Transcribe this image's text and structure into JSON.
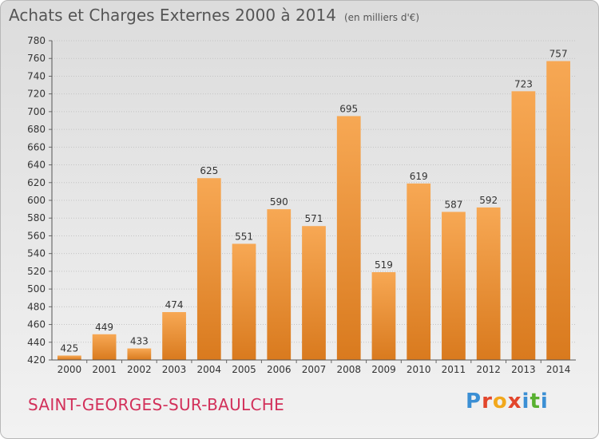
{
  "title": "Achats et Charges Externes 2000 à 2014",
  "subtitle": "(en milliers d'€)",
  "commune": "SAINT-GEORGES-SUR-BAULCHE",
  "logo": {
    "text": "Proxiti",
    "letters": [
      {
        "ch": "P",
        "color": "#3b8fd4"
      },
      {
        "ch": "r",
        "color": "#e2462c"
      },
      {
        "ch": "o",
        "color": "#f2a81c"
      },
      {
        "ch": "x",
        "color": "#e2462c"
      },
      {
        "ch": "i",
        "color": "#3b8fd4"
      },
      {
        "ch": "t",
        "color": "#58b030"
      },
      {
        "ch": "i",
        "color": "#3b8fd4"
      }
    ]
  },
  "colors": {
    "bar_light": "#f7a854",
    "bar_dark": "#d97a1e",
    "title": "#555555",
    "commune": "#d2305a"
  },
  "chart_data": {
    "type": "bar",
    "title": "Achats et Charges Externes 2000 à 2014",
    "subtitle": "(en milliers d'€)",
    "categories": [
      "2000",
      "2001",
      "2002",
      "2003",
      "2004",
      "2005",
      "2006",
      "2007",
      "2008",
      "2009",
      "2010",
      "2011",
      "2012",
      "2013",
      "2014"
    ],
    "values": [
      425,
      449,
      433,
      474,
      625,
      551,
      590,
      571,
      695,
      519,
      619,
      587,
      592,
      723,
      757
    ],
    "ylim": [
      420,
      780
    ],
    "yticks": [
      420,
      440,
      460,
      480,
      500,
      520,
      540,
      560,
      580,
      600,
      620,
      640,
      660,
      680,
      700,
      720,
      740,
      760,
      780
    ],
    "grid": true,
    "xlabel": "",
    "ylabel": ""
  }
}
